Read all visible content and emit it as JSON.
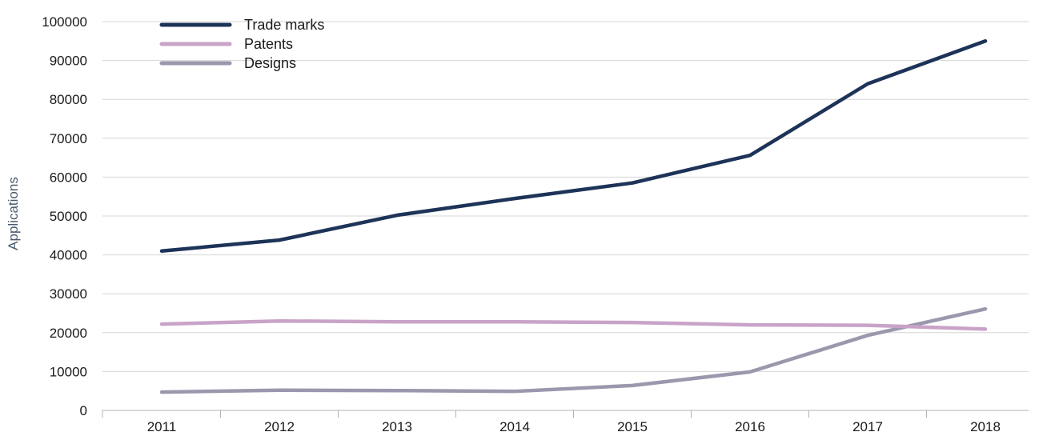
{
  "chart_data": {
    "type": "line",
    "title": "",
    "xlabel": "",
    "ylabel": "Applications",
    "categories": [
      "2011",
      "2012",
      "2013",
      "2014",
      "2015",
      "2016",
      "2017",
      "2018"
    ],
    "ylim": [
      0,
      100000
    ],
    "yticks": [
      0,
      10000,
      20000,
      30000,
      40000,
      50000,
      60000,
      70000,
      80000,
      90000,
      100000
    ],
    "yticklabels": [
      "0",
      "10000",
      "20000",
      "30000",
      "40000",
      "50000",
      "60000",
      "70000",
      "80000",
      "90000",
      "100000"
    ],
    "grid": true,
    "legend_position": "top-left",
    "series": [
      {
        "name": "Trade marks",
        "color": "#1d3358",
        "values": [
          41000,
          43800,
          50200,
          54500,
          58500,
          65600,
          84000,
          95000
        ]
      },
      {
        "name": "Patents",
        "color": "#c9a3c7",
        "values": [
          22200,
          23000,
          22800,
          22800,
          22600,
          22000,
          21900,
          20900
        ]
      },
      {
        "name": "Designs",
        "color": "#9a98ad",
        "values": [
          4700,
          5200,
          5100,
          4900,
          6400,
          9900,
          19300,
          26100
        ]
      }
    ]
  }
}
